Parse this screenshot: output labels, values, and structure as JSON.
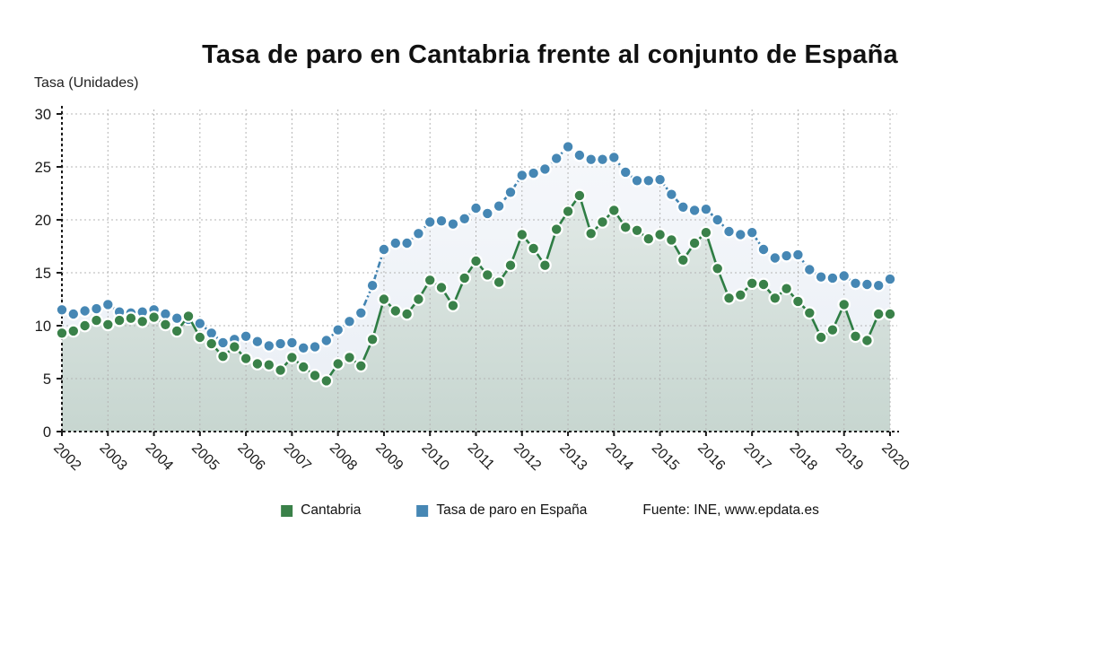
{
  "title": "Tasa de paro en Cantabria frente al conjunto de España",
  "y_axis_title": "Tasa (Unidades)",
  "legend": {
    "cantabria_label": "Cantabria",
    "espana_label": "Tasa de paro en España",
    "source": "Fuente: INE, www.epdata.es"
  },
  "colors": {
    "cantabria": "#3a8149",
    "espana": "#4687b4",
    "cantabria_line": "#2e7d44",
    "espana_line": "#4183b1",
    "grid": "#b4b4b4",
    "axis": "#1a1a1a",
    "area_cantabria_top": "#e7edeb",
    "area_cantabria_bottom": "#c7d6d0",
    "area_espana_top": "#f6f8fb",
    "area_espana_bottom": "#e9eef5"
  },
  "chart_data": {
    "type": "line",
    "title": "Tasa de paro en Cantabria frente al conjunto de España",
    "xlabel": "",
    "ylabel": "Tasa (Unidades)",
    "ylim": [
      0,
      30
    ],
    "yticks": [
      0,
      5,
      10,
      15,
      20,
      25,
      30
    ],
    "grid": true,
    "legend_position": "bottom",
    "x_tick_labels": [
      "2002",
      "2003",
      "2004",
      "2005",
      "2006",
      "2007",
      "2008",
      "2009",
      "2010",
      "2011",
      "2012",
      "2013",
      "2014",
      "2015",
      "2016",
      "2017",
      "2018",
      "2019",
      "2020"
    ],
    "points_per_year": 4,
    "x_resolution": "quarterly",
    "series": [
      {
        "name": "Cantabria",
        "color": "#3a8149",
        "line_style": "solid",
        "values": [
          9.3,
          9.5,
          10.0,
          10.5,
          10.1,
          10.5,
          10.7,
          10.4,
          10.8,
          10.1,
          9.5,
          10.9,
          8.9,
          8.3,
          7.1,
          8.0,
          6.9,
          6.4,
          6.3,
          5.8,
          7.0,
          6.1,
          5.3,
          4.8,
          6.4,
          7.0,
          6.2,
          8.7,
          12.5,
          11.4,
          11.1,
          12.5,
          14.3,
          13.6,
          11.9,
          14.5,
          16.1,
          14.8,
          14.1,
          15.7,
          18.6,
          17.3,
          15.7,
          19.1,
          20.8,
          22.3,
          18.7,
          19.8,
          20.9,
          19.3,
          19.0,
          18.2,
          18.6,
          18.1,
          16.2,
          17.8,
          18.8,
          15.4,
          12.6,
          12.9,
          14.0,
          13.9,
          12.6,
          13.5,
          12.3,
          11.2,
          8.9,
          9.6,
          12.0,
          9.0,
          8.6,
          11.1,
          11.1
        ]
      },
      {
        "name": "Tasa de paro en España",
        "color": "#4687b4",
        "line_style": "dash-dot",
        "values": [
          11.5,
          11.1,
          11.4,
          11.6,
          12.0,
          11.3,
          11.2,
          11.3,
          11.5,
          11.1,
          10.7,
          10.6,
          10.2,
          9.3,
          8.4,
          8.7,
          9.0,
          8.5,
          8.1,
          8.3,
          8.4,
          7.9,
          8.0,
          8.6,
          9.6,
          10.4,
          11.2,
          13.8,
          17.2,
          17.8,
          17.8,
          18.7,
          19.8,
          19.9,
          19.6,
          20.1,
          21.1,
          20.6,
          21.3,
          22.6,
          24.2,
          24.4,
          24.8,
          25.8,
          26.9,
          26.1,
          25.7,
          25.7,
          25.9,
          24.5,
          23.7,
          23.7,
          23.8,
          22.4,
          21.2,
          20.9,
          21.0,
          20.0,
          18.9,
          18.6,
          18.8,
          17.2,
          16.4,
          16.6,
          16.7,
          15.3,
          14.6,
          14.5,
          14.7,
          14.0,
          13.9,
          13.8,
          14.4
        ]
      }
    ]
  }
}
